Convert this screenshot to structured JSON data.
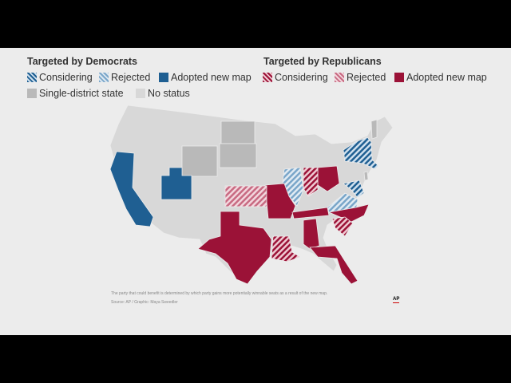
{
  "legend": {
    "dem_title": "Targeted by Democrats",
    "rep_title": "Targeted by Republicans",
    "dem_items": [
      "Considering",
      "Rejected",
      "Adopted new map"
    ],
    "rep_items": [
      "Considering",
      "Rejected",
      "Adopted new map"
    ],
    "other_items": [
      "Single-district state",
      "No status"
    ]
  },
  "footnote": "The party that could benefit is determined by which party gains more potentially winnable seats as a result of the new map.",
  "source": "Source: AP / Graphic: Maya Sweedler",
  "logo": "AP",
  "colors": {
    "dem_solid": "#1f5f92",
    "dem_hatch_light": "#7aa6c9",
    "rep_solid": "#9b1237",
    "rep_hatch_light": "#c86a82",
    "single_district": "#b9b9b9",
    "no_status": "#d8d8d8",
    "background": "#ececec"
  },
  "states": {
    "dem_adopted": [
      "California",
      "Utah"
    ],
    "dem_considering": [
      "New York",
      "Maryland"
    ],
    "dem_rejected": [
      "Illinois",
      "Virginia"
    ],
    "rep_adopted": [
      "Texas",
      "Missouri",
      "Ohio",
      "Tennessee",
      "North Carolina",
      "Alabama",
      "Florida"
    ],
    "rep_considering": [
      "Indiana",
      "Louisiana",
      "South Carolina"
    ],
    "rep_rejected": [
      "Kansas"
    ],
    "single_district": [
      "Wyoming",
      "North Dakota",
      "South Dakota",
      "Vermont",
      "Delaware"
    ]
  }
}
